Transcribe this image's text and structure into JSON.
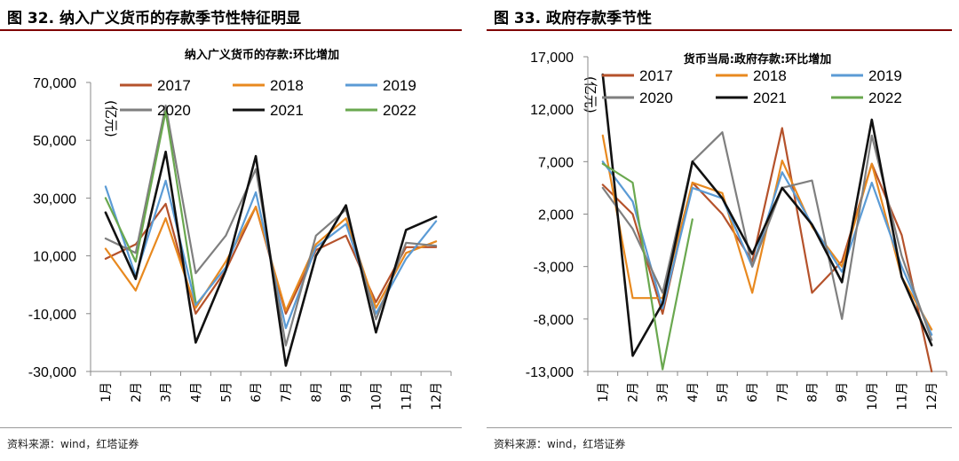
{
  "charts": [
    {
      "figure_title": "图 32. 纳入广义货币的存款季节性特征明显",
      "source": "资料来源：wind，红塔证券",
      "chart_data": {
        "type": "line",
        "title": "纳入广义货币的存款:环比增加",
        "unit_label": "(亿元)",
        "categories": [
          "1月",
          "2月",
          "3月",
          "4月",
          "5月",
          "6月",
          "7月",
          "8月",
          "9月",
          "10月",
          "11月",
          "12月"
        ],
        "ylim": [
          -30000,
          70000
        ],
        "yticks": [
          -30000,
          -10000,
          10000,
          30000,
          50000,
          70000
        ],
        "ytick_labels": [
          "-30,000",
          "-10,000",
          "10,000",
          "30,000",
          "50,000",
          "70,000"
        ],
        "grid": false,
        "legend": "top",
        "series": [
          {
            "name": "2017",
            "color": "#b5522b",
            "values": [
              9000,
              14000,
              28000,
              -10000,
              5000,
              27000,
              -10000,
              12000,
              17000,
              -6000,
              13000,
              13000
            ]
          },
          {
            "name": "2018",
            "color": "#e8891f",
            "values": [
              12500,
              -2000,
              23000,
              -8000,
              8000,
              27000,
              -9000,
              14000,
              23000,
              -8000,
              11000,
              15000
            ]
          },
          {
            "name": "2019",
            "color": "#5b9bd5",
            "values": [
              34000,
              3000,
              36000,
              -7000,
              6000,
              32000,
              -15000,
              13000,
              21000,
              -10000,
              9000,
              22000
            ]
          },
          {
            "name": "2020",
            "color": "#7f7f7f",
            "values": [
              16000,
              11000,
              62000,
              4000,
              17000,
              40000,
              -21000,
              17000,
              26000,
              -12000,
              14500,
              13500
            ]
          },
          {
            "name": "2021",
            "color": "#111111",
            "values": [
              25000,
              2000,
              46000,
              -20000,
              5000,
              44500,
              -28000,
              10000,
              27500,
              -16500,
              19000,
              23500
            ]
          },
          {
            "name": "2022",
            "color": "#6aa84f",
            "values": [
              30000,
              8000,
              60000,
              -6000,
              null,
              null,
              null,
              null,
              null,
              null,
              null,
              null
            ]
          }
        ]
      }
    },
    {
      "figure_title": "图 33. 政府存款季节性",
      "source": "资料来源：wind，红塔证券",
      "chart_data": {
        "type": "line",
        "title": "货币当局:政府存款:环比增加",
        "unit_label": "(亿元)",
        "categories": [
          "1月",
          "2月",
          "3月",
          "4月",
          "5月",
          "6月",
          "7月",
          "8月",
          "9月",
          "10月",
          "11月",
          "12月"
        ],
        "ylim": [
          -13000,
          17000
        ],
        "yticks": [
          -13000,
          -8000,
          -3000,
          2000,
          7000,
          12000,
          17000
        ],
        "ytick_labels": [
          "-13,000",
          "-8,000",
          "-3,000",
          "2,000",
          "7,000",
          "12,000",
          "17,000"
        ],
        "grid": false,
        "legend": "top",
        "series": [
          {
            "name": "2017",
            "color": "#b5522b",
            "values": [
              4800,
              2000,
              -7500,
              5000,
              2000,
              -2500,
              10200,
              -5500,
              -2500,
              6800,
              0,
              -13000
            ]
          },
          {
            "name": "2018",
            "color": "#e8891f",
            "values": [
              9500,
              -6000,
              -6000,
              5000,
              4000,
              -5500,
              7100,
              800,
              -3000,
              6800,
              -4000,
              -9000
            ]
          },
          {
            "name": "2019",
            "color": "#5b9bd5",
            "values": [
              7000,
              3200,
              -7000,
              4500,
              3500,
              -3000,
              6000,
              1000,
              -3500,
              5000,
              -3000,
              -9500
            ]
          },
          {
            "name": "2020",
            "color": "#7f7f7f",
            "values": [
              4500,
              600,
              -5500,
              7000,
              9800,
              -3000,
              4500,
              5200,
              -8000,
              9500,
              -2000,
              -10000
            ]
          },
          {
            "name": "2021",
            "color": "#111111",
            "values": [
              15300,
              -11500,
              -6500,
              7000,
              3500,
              -1800,
              4500,
              1000,
              -4500,
              11000,
              -4000,
              -10500
            ]
          },
          {
            "name": "2022",
            "color": "#6aa84f",
            "values": [
              6800,
              5000,
              -12800,
              1500,
              null,
              null,
              null,
              null,
              null,
              null,
              null,
              null
            ]
          }
        ]
      }
    }
  ]
}
